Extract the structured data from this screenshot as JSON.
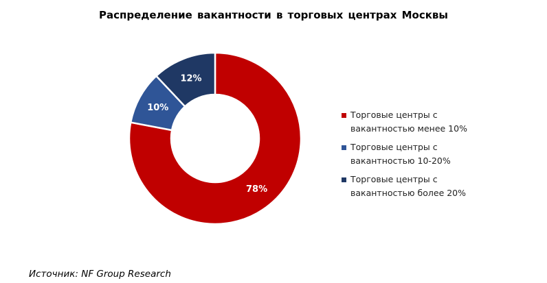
{
  "chart_data": {
    "type": "pie",
    "donut": true,
    "title": "Распределение  вакантности  в торговых центрах Москвы",
    "categories": [
      "Торговые центры с вакантностью менее 10%",
      "Торговые центры с вакантностью 10-20%",
      "Торговые центры с вакантностью более 20%"
    ],
    "legend_lines": [
      [
        "Торговые центры с",
        "вакантностью менее 10%"
      ],
      [
        "Торговые центры с",
        "вакантностью 10-20%"
      ],
      [
        "Торговые центры с",
        "вакантностью более 20%"
      ]
    ],
    "values": [
      78,
      10,
      12
    ],
    "data_labels": [
      "78%",
      "10%",
      "12%"
    ],
    "colors": [
      "#C00000",
      "#2F5597",
      "#1F3864"
    ],
    "legend_position": "right"
  },
  "source": "Источник: NF Group Research"
}
